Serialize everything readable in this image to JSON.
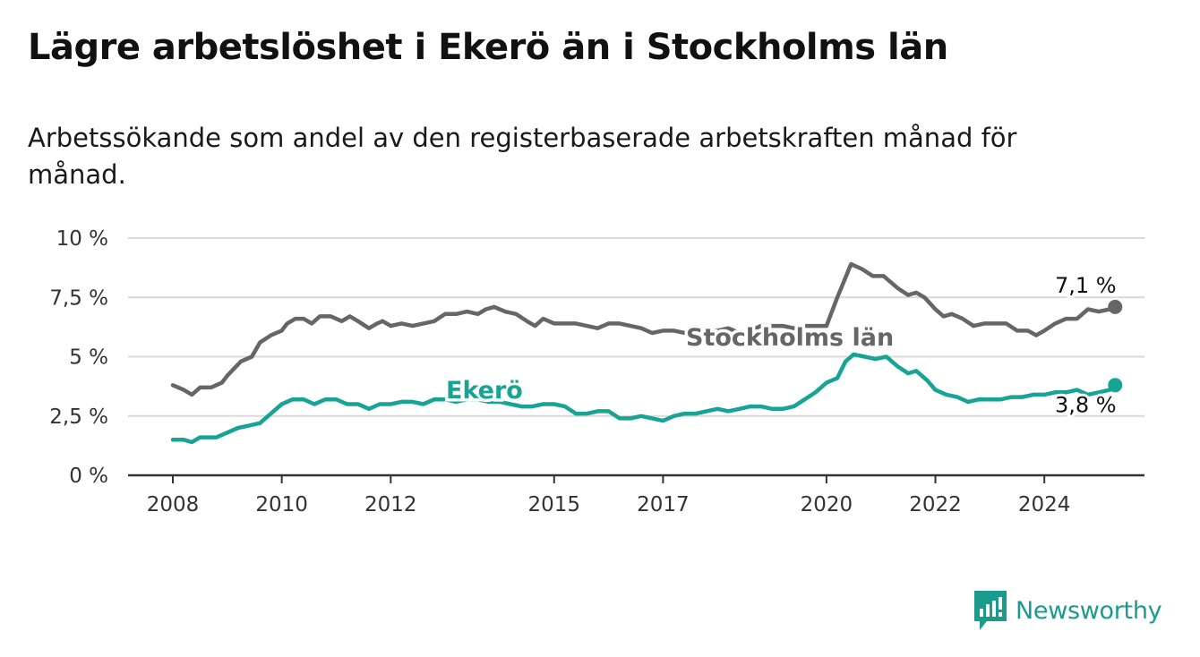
{
  "title": "Lägre arbetslöshet i Ekerö än i Stockholms län",
  "subtitle": "Arbetssökande som andel av den registerbaserade arbetskraften månad för månad.",
  "brand": {
    "name": "Newsworthy",
    "icon": "newsworthy-logo-icon",
    "color": "#1a9b8c"
  },
  "chart_data": {
    "type": "line",
    "ylim": [
      0,
      10
    ],
    "xlim": [
      2008,
      2025
    ],
    "grid": true,
    "y_ticks": [
      {
        "value": 0,
        "label": "0 %"
      },
      {
        "value": 2.5,
        "label": "2,5 %"
      },
      {
        "value": 5,
        "label": "5 %"
      },
      {
        "value": 7.5,
        "label": "7,5 %"
      },
      {
        "value": 10,
        "label": "10 %"
      }
    ],
    "x_ticks": [
      {
        "value": 2008,
        "label": "2008"
      },
      {
        "value": 2010,
        "label": "2010"
      },
      {
        "value": 2012,
        "label": "2012"
      },
      {
        "value": 2015,
        "label": "2015"
      },
      {
        "value": 2017,
        "label": "2017"
      },
      {
        "value": 2020,
        "label": "2020"
      },
      {
        "value": 2022,
        "label": "2022"
      },
      {
        "value": 2024,
        "label": "2024"
      }
    ],
    "series": [
      {
        "name": "Stockholms län",
        "color": "#666666",
        "end_label": "7,1 %",
        "points": [
          [
            2008.0,
            3.8
          ],
          [
            2008.1,
            3.7
          ],
          [
            2008.2,
            3.6
          ],
          [
            2008.35,
            3.4
          ],
          [
            2008.5,
            3.7
          ],
          [
            2008.7,
            3.7
          ],
          [
            2008.9,
            3.9
          ],
          [
            2009.0,
            4.2
          ],
          [
            2009.25,
            4.8
          ],
          [
            2009.45,
            5.0
          ],
          [
            2009.6,
            5.6
          ],
          [
            2009.8,
            5.9
          ],
          [
            2010.0,
            6.1
          ],
          [
            2010.1,
            6.4
          ],
          [
            2010.25,
            6.6
          ],
          [
            2010.4,
            6.6
          ],
          [
            2010.55,
            6.4
          ],
          [
            2010.7,
            6.7
          ],
          [
            2010.9,
            6.7
          ],
          [
            2011.1,
            6.5
          ],
          [
            2011.25,
            6.7
          ],
          [
            2011.4,
            6.5
          ],
          [
            2011.6,
            6.2
          ],
          [
            2011.75,
            6.4
          ],
          [
            2011.85,
            6.5
          ],
          [
            2012.0,
            6.3
          ],
          [
            2012.2,
            6.4
          ],
          [
            2012.4,
            6.3
          ],
          [
            2012.6,
            6.4
          ],
          [
            2012.8,
            6.5
          ],
          [
            2013.0,
            6.8
          ],
          [
            2013.2,
            6.8
          ],
          [
            2013.4,
            6.9
          ],
          [
            2013.6,
            6.8
          ],
          [
            2013.75,
            7.0
          ],
          [
            2013.9,
            7.1
          ],
          [
            2014.1,
            6.9
          ],
          [
            2014.3,
            6.8
          ],
          [
            2014.5,
            6.5
          ],
          [
            2014.65,
            6.3
          ],
          [
            2014.8,
            6.6
          ],
          [
            2015.0,
            6.4
          ],
          [
            2015.2,
            6.4
          ],
          [
            2015.4,
            6.4
          ],
          [
            2015.6,
            6.3
          ],
          [
            2015.8,
            6.2
          ],
          [
            2016.0,
            6.4
          ],
          [
            2016.2,
            6.4
          ],
          [
            2016.4,
            6.3
          ],
          [
            2016.6,
            6.2
          ],
          [
            2016.8,
            6.0
          ],
          [
            2017.0,
            6.1
          ],
          [
            2017.2,
            6.1
          ],
          [
            2017.4,
            6.0
          ],
          [
            2017.6,
            6.1
          ],
          [
            2017.8,
            6.0
          ],
          [
            2018.0,
            6.1
          ],
          [
            2018.2,
            6.2
          ],
          [
            2018.4,
            6.0
          ],
          [
            2018.6,
            6.1
          ],
          [
            2018.8,
            6.3
          ],
          [
            2019.0,
            6.3
          ],
          [
            2019.2,
            6.3
          ],
          [
            2019.4,
            6.2
          ],
          [
            2019.6,
            6.3
          ],
          [
            2019.8,
            6.3
          ],
          [
            2020.0,
            6.3
          ],
          [
            2020.2,
            7.5
          ],
          [
            2020.45,
            8.9
          ],
          [
            2020.65,
            8.7
          ],
          [
            2020.85,
            8.4
          ],
          [
            2021.05,
            8.4
          ],
          [
            2021.3,
            7.9
          ],
          [
            2021.5,
            7.6
          ],
          [
            2021.65,
            7.7
          ],
          [
            2021.8,
            7.5
          ],
          [
            2022.0,
            7.0
          ],
          [
            2022.15,
            6.7
          ],
          [
            2022.3,
            6.8
          ],
          [
            2022.5,
            6.6
          ],
          [
            2022.7,
            6.3
          ],
          [
            2022.9,
            6.4
          ],
          [
            2023.1,
            6.4
          ],
          [
            2023.3,
            6.4
          ],
          [
            2023.5,
            6.1
          ],
          [
            2023.7,
            6.1
          ],
          [
            2023.85,
            5.9
          ],
          [
            2024.0,
            6.1
          ],
          [
            2024.2,
            6.4
          ],
          [
            2024.4,
            6.6
          ],
          [
            2024.6,
            6.6
          ],
          [
            2024.8,
            7.0
          ],
          [
            2025.0,
            6.9
          ],
          [
            2025.2,
            7.0
          ],
          [
            2025.3,
            7.1
          ]
        ]
      },
      {
        "name": "Ekerö",
        "color": "#17a494",
        "end_label": "3,8 %",
        "points": [
          [
            2008.0,
            1.5
          ],
          [
            2008.2,
            1.5
          ],
          [
            2008.35,
            1.4
          ],
          [
            2008.5,
            1.6
          ],
          [
            2008.8,
            1.6
          ],
          [
            2009.0,
            1.8
          ],
          [
            2009.2,
            2.0
          ],
          [
            2009.4,
            2.1
          ],
          [
            2009.6,
            2.2
          ],
          [
            2009.8,
            2.6
          ],
          [
            2010.0,
            3.0
          ],
          [
            2010.2,
            3.2
          ],
          [
            2010.4,
            3.2
          ],
          [
            2010.6,
            3.0
          ],
          [
            2010.8,
            3.2
          ],
          [
            2011.0,
            3.2
          ],
          [
            2011.2,
            3.0
          ],
          [
            2011.4,
            3.0
          ],
          [
            2011.6,
            2.8
          ],
          [
            2011.8,
            3.0
          ],
          [
            2012.0,
            3.0
          ],
          [
            2012.2,
            3.1
          ],
          [
            2012.4,
            3.1
          ],
          [
            2012.6,
            3.0
          ],
          [
            2012.8,
            3.2
          ],
          [
            2013.0,
            3.2
          ],
          [
            2013.2,
            3.1
          ],
          [
            2013.4,
            3.2
          ],
          [
            2013.6,
            3.2
          ],
          [
            2013.8,
            3.1
          ],
          [
            2014.0,
            3.1
          ],
          [
            2014.2,
            3.0
          ],
          [
            2014.4,
            2.9
          ],
          [
            2014.6,
            2.9
          ],
          [
            2014.8,
            3.0
          ],
          [
            2015.0,
            3.0
          ],
          [
            2015.2,
            2.9
          ],
          [
            2015.4,
            2.6
          ],
          [
            2015.6,
            2.6
          ],
          [
            2015.8,
            2.7
          ],
          [
            2016.0,
            2.7
          ],
          [
            2016.2,
            2.4
          ],
          [
            2016.4,
            2.4
          ],
          [
            2016.6,
            2.5
          ],
          [
            2016.8,
            2.4
          ],
          [
            2017.0,
            2.3
          ],
          [
            2017.2,
            2.5
          ],
          [
            2017.4,
            2.6
          ],
          [
            2017.6,
            2.6
          ],
          [
            2017.8,
            2.7
          ],
          [
            2018.0,
            2.8
          ],
          [
            2018.2,
            2.7
          ],
          [
            2018.4,
            2.8
          ],
          [
            2018.6,
            2.9
          ],
          [
            2018.8,
            2.9
          ],
          [
            2019.0,
            2.8
          ],
          [
            2019.2,
            2.8
          ],
          [
            2019.4,
            2.9
          ],
          [
            2019.6,
            3.2
          ],
          [
            2019.8,
            3.5
          ],
          [
            2020.0,
            3.9
          ],
          [
            2020.2,
            4.1
          ],
          [
            2020.35,
            4.8
          ],
          [
            2020.5,
            5.1
          ],
          [
            2020.7,
            5.0
          ],
          [
            2020.9,
            4.9
          ],
          [
            2021.1,
            5.0
          ],
          [
            2021.3,
            4.6
          ],
          [
            2021.5,
            4.3
          ],
          [
            2021.65,
            4.4
          ],
          [
            2021.85,
            4.0
          ],
          [
            2022.0,
            3.6
          ],
          [
            2022.2,
            3.4
          ],
          [
            2022.4,
            3.3
          ],
          [
            2022.6,
            3.1
          ],
          [
            2022.8,
            3.2
          ],
          [
            2023.0,
            3.2
          ],
          [
            2023.2,
            3.2
          ],
          [
            2023.4,
            3.3
          ],
          [
            2023.6,
            3.3
          ],
          [
            2023.8,
            3.4
          ],
          [
            2024.0,
            3.4
          ],
          [
            2024.2,
            3.5
          ],
          [
            2024.4,
            3.5
          ],
          [
            2024.6,
            3.6
          ],
          [
            2024.8,
            3.4
          ],
          [
            2025.0,
            3.5
          ],
          [
            2025.2,
            3.6
          ],
          [
            2025.3,
            3.8
          ]
        ]
      }
    ],
    "series_labels": [
      {
        "text": "Stockholms län",
        "series": 0
      },
      {
        "text": "Ekerö",
        "series": 1
      }
    ]
  }
}
